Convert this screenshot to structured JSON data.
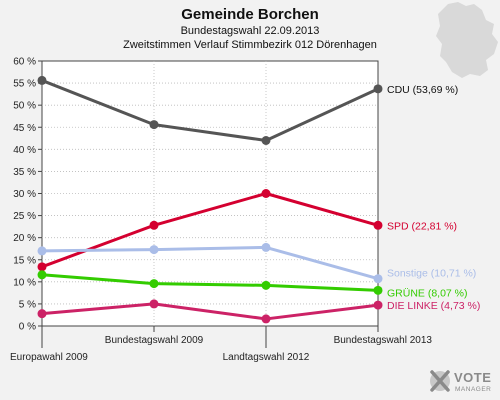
{
  "chart_data": {
    "type": "line",
    "title": "Gemeinde Borchen",
    "subtitle": "Bundestagswahl 22.09.2013",
    "subtitle2": "Zweitstimmen Verlauf Stimmbezirk 012 Dörenhagen",
    "categories": [
      "Europawahl 2009",
      "Bundestagswahl 2009",
      "Landtagswahl 2012",
      "Bundestagswahl 2013"
    ],
    "ylim": [
      0,
      60
    ],
    "yticks": [
      "0 %",
      "5 %",
      "10 %",
      "15 %",
      "20 %",
      "25 %",
      "30 %",
      "35 %",
      "40 %",
      "45 %",
      "50 %",
      "55 %",
      "60 %"
    ],
    "grid": true,
    "series": [
      {
        "name": "CDU",
        "end_label": "CDU (53,69 %)",
        "color": "#555555",
        "values": [
          55.6,
          45.6,
          42.0,
          53.69
        ]
      },
      {
        "name": "SPD",
        "end_label": "SPD (22,81 %)",
        "color": "#d40030",
        "values": [
          13.4,
          22.8,
          30.0,
          22.81
        ]
      },
      {
        "name": "Sonstige",
        "end_label": "Sonstige (10,71 %)",
        "color": "#aabde8",
        "values": [
          17.0,
          17.3,
          17.8,
          10.71
        ]
      },
      {
        "name": "GRÜNE",
        "end_label": "GRÜNE (8,07 %)",
        "color": "#33cc00",
        "values": [
          11.6,
          9.6,
          9.2,
          8.07
        ]
      },
      {
        "name": "DIE LINKE",
        "end_label": "DIE LINKE (4,73 %)",
        "color": "#cc2266",
        "values": [
          2.8,
          5.0,
          1.6,
          4.73
        ]
      }
    ]
  },
  "logo": {
    "text": "VOTE",
    "sub": "MANAGER",
    "icon": "vote-manager-x-icon"
  },
  "map_icon": "germany-map-icon"
}
